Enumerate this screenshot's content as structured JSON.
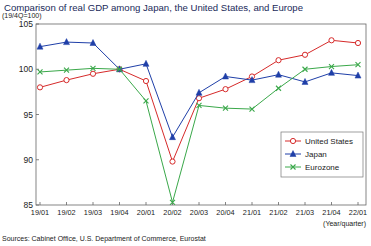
{
  "chart_data": {
    "type": "line",
    "title": "Comparison of real GDP among Japan, the United States, and Europe",
    "ylabel": "(19/4Q=100)",
    "xlabel": "(Year/quarter)",
    "source": "Sources: Cabinet Office, U.S. Department of Commerce, Eurostat",
    "categories": [
      "19/01",
      "19/02",
      "19/03",
      "19/04",
      "20/01",
      "20/02",
      "20/03",
      "20/04",
      "21/01",
      "21/02",
      "21/03",
      "21/04",
      "22/01"
    ],
    "series": [
      {
        "name": "United States",
        "color": "#d62a2a",
        "marker": "circle-open",
        "line_style": "solid",
        "values": [
          98.0,
          98.8,
          99.5,
          100,
          98.7,
          89.8,
          96.8,
          97.8,
          99.2,
          101.0,
          101.6,
          103.2,
          102.9
        ]
      },
      {
        "name": "Japan",
        "color": "#1f3fa8",
        "marker": "triangle",
        "line_style": "solid",
        "values": [
          102.5,
          103.0,
          102.9,
          100,
          100.6,
          92.5,
          97.4,
          99.2,
          98.8,
          99.4,
          98.6,
          99.6,
          99.3
        ]
      },
      {
        "name": "Eurozone",
        "color": "#3aa84a",
        "marker": "x",
        "line_style": "solid",
        "values": [
          99.7,
          99.9,
          100.1,
          100,
          96.5,
          85.3,
          96.0,
          95.7,
          95.6,
          97.9,
          100.0,
          100.3,
          100.5
        ]
      }
    ],
    "ylim": [
      85,
      105
    ],
    "yticks": [
      85,
      90,
      95,
      100,
      105
    ],
    "grid": false,
    "legend": "lower-right"
  }
}
